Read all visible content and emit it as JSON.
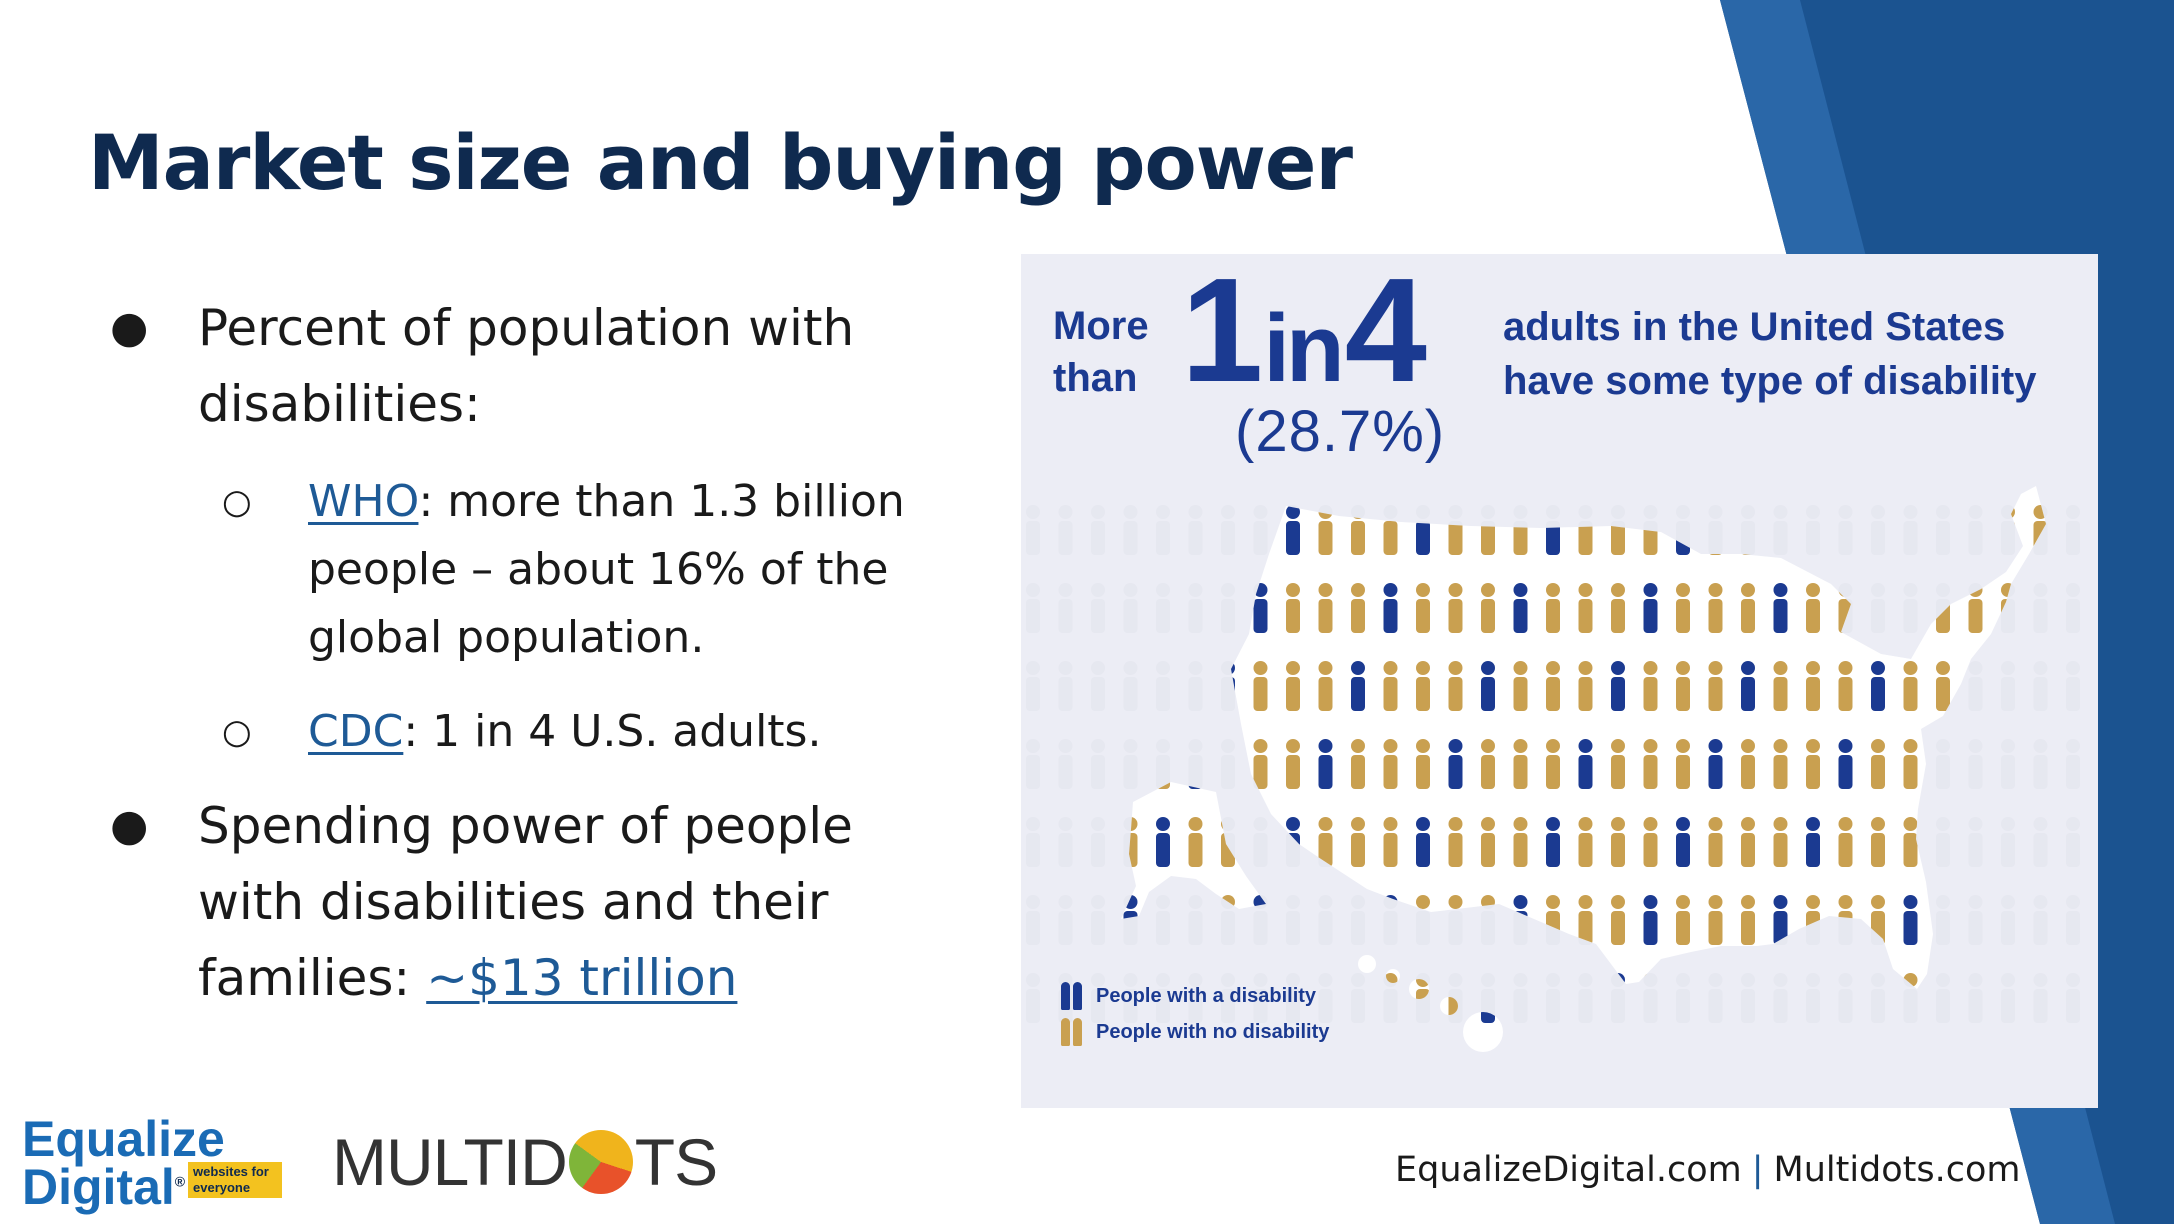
{
  "slide": {
    "title": "Market size and buying power",
    "colors": {
      "title": "#0f2a4f",
      "link": "#1e5a96",
      "accent_band": "#1b5390",
      "accent_band_light": "#2a67a8"
    }
  },
  "bullets": {
    "b1": {
      "text": "Percent of population with disabilities:"
    },
    "sub1": {
      "link": "WHO",
      "text": ": more than 1.3 billion people – about 16% of the global population."
    },
    "sub2": {
      "link": "CDC",
      "text": ": 1 in 4 U.S. adults."
    },
    "b2": {
      "text": "Spending power of people with disabilities and their families: ",
      "link": "~$13 trillion"
    }
  },
  "infographic": {
    "lead": "More than",
    "n1": "1",
    "word": "in",
    "n2": "4",
    "percent": "(28.7%)",
    "description": "adults in the United States have some type of disability",
    "legend": [
      {
        "label": "People with a disability",
        "color": "#1b3a91"
      },
      {
        "label": "People with no disability",
        "color": "#c9a050"
      }
    ],
    "icon_names": [
      "us-map",
      "person-figures"
    ]
  },
  "footer": {
    "logo1_line1": "Equalize",
    "logo1_line2": "Digital",
    "logo1_reg": "®",
    "logo1_tag": "websites for everyone",
    "logo2_left": "MULTID",
    "logo2_right": "TS",
    "url1": "EqualizeDigital.com",
    "separator": "|",
    "url2": "Multidots.com"
  }
}
